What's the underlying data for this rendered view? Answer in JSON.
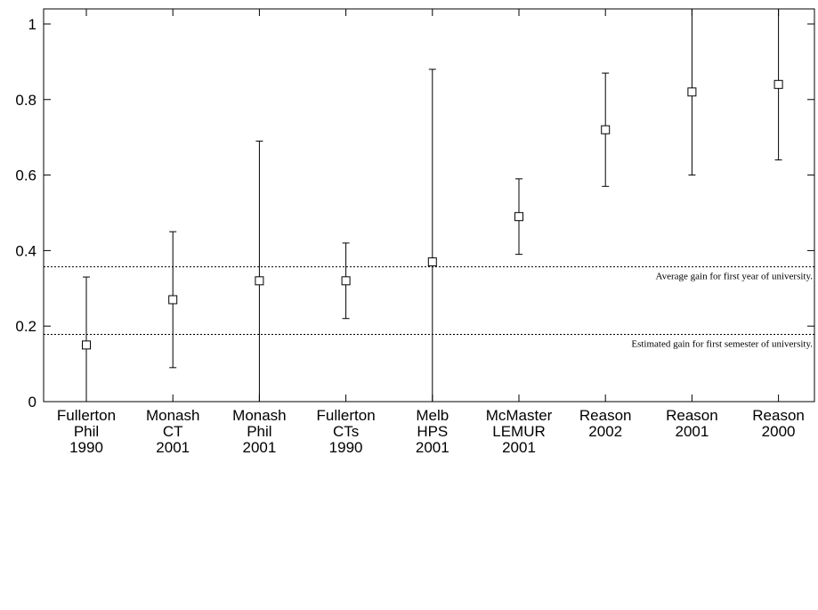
{
  "chart_data": {
    "type": "scatter",
    "title": "",
    "xlabel": "",
    "ylabel": "",
    "ylim": [
      0,
      1.04
    ],
    "yticks": [
      "0",
      "0.2",
      "0.4",
      "0.6",
      "0.8",
      "1"
    ],
    "ytick_values": [
      0,
      0.2,
      0.4,
      0.6,
      0.8,
      1.0
    ],
    "grid": false,
    "categories": [
      [
        "Fullerton",
        "Phil",
        "1990"
      ],
      [
        "Monash",
        "CT",
        "2001"
      ],
      [
        "Monash",
        "Phil",
        "2001"
      ],
      [
        "Fullerton",
        "CTs",
        "1990"
      ],
      [
        "Melb",
        "HPS",
        "2001"
      ],
      [
        "McMaster",
        "LEMUR",
        "2001"
      ],
      [
        "Reason",
        "2002"
      ],
      [
        "Reason",
        "2001"
      ],
      [
        "Reason",
        "2000"
      ]
    ],
    "series": [
      {
        "values": [
          0.15,
          0.27,
          0.32,
          0.32,
          0.37,
          0.49,
          0.72,
          0.82,
          0.84
        ],
        "lower": [
          0.0,
          0.09,
          0.0,
          0.22,
          0.0,
          0.39,
          0.57,
          0.6,
          0.64
        ],
        "upper": [
          0.33,
          0.45,
          0.69,
          0.42,
          0.88,
          0.59,
          0.87,
          1.04,
          1.04
        ]
      }
    ],
    "reference_lines": [
      {
        "value": 0.357,
        "label": "Average gain for first year of university."
      },
      {
        "value": 0.178,
        "label": "Estimated gain for first semester of university."
      }
    ]
  }
}
